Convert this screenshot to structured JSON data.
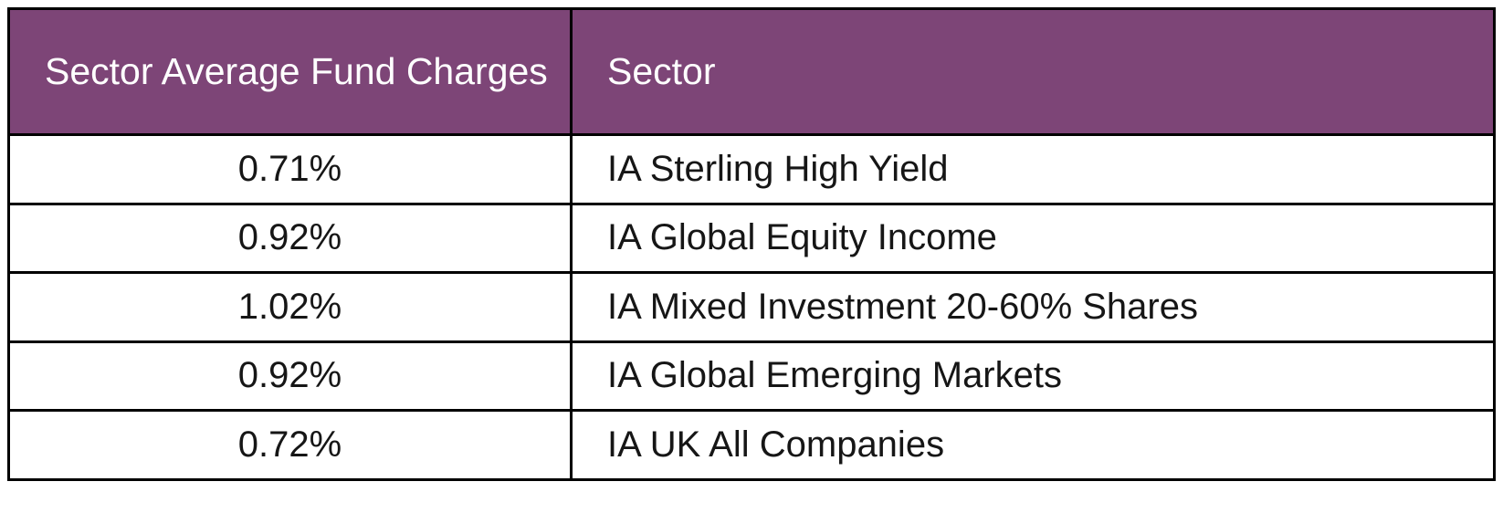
{
  "table": {
    "header": {
      "charges_label": "Sector Average Fund Charges",
      "sector_label": "Sector"
    },
    "rows": [
      {
        "charge": "0.71%",
        "sector": "IA Sterling High Yield"
      },
      {
        "charge": "0.92%",
        "sector": "IA Global Equity Income"
      },
      {
        "charge": "1.02%",
        "sector": "IA Mixed Investment 20-60% Shares"
      },
      {
        "charge": "0.92%",
        "sector": "IA Global Emerging Markets"
      },
      {
        "charge": "0.72%",
        "sector": "IA UK All Companies"
      }
    ],
    "colors": {
      "header_bg": "#7d4577",
      "header_text": "#ffffff",
      "border": "#000000",
      "row_bg": "#ffffff",
      "body_text": "#161616",
      "page_bg": "#ffffff"
    }
  }
}
